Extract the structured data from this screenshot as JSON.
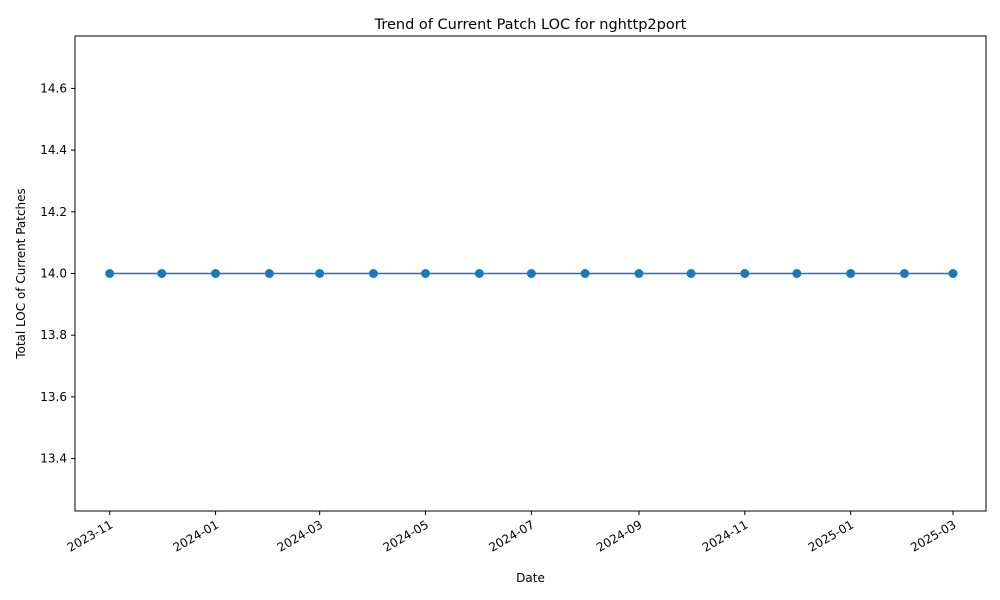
{
  "chart_data": {
    "type": "line",
    "title": "Trend of Current Patch LOC for nghttp2port",
    "xlabel": "Date",
    "ylabel": "Total LOC of Current Patches",
    "x_tick_labels": [
      "2023-11",
      "2024-01",
      "2024-03",
      "2024-05",
      "2024-07",
      "2024-09",
      "2024-11",
      "2025-01",
      "2025-03"
    ],
    "y_tick_labels": [
      "13.4",
      "13.6",
      "13.8",
      "14.0",
      "14.2",
      "14.4",
      "14.6"
    ],
    "ylim": [
      13.23,
      14.77
    ],
    "grid": false,
    "series": [
      {
        "color": "#1f77b4",
        "marker": "circle",
        "x": [
          "2023-11-01",
          "2023-12-01",
          "2024-01-01",
          "2024-02-01",
          "2024-03-01",
          "2024-04-01",
          "2024-05-01",
          "2024-06-01",
          "2024-07-01",
          "2024-08-01",
          "2024-09-01",
          "2024-10-01",
          "2024-11-01",
          "2024-12-01",
          "2025-01-01",
          "2025-02-01",
          "2025-03-01"
        ],
        "values": [
          14,
          14,
          14,
          14,
          14,
          14,
          14,
          14,
          14,
          14,
          14,
          14,
          14,
          14,
          14,
          14,
          14
        ]
      }
    ]
  }
}
